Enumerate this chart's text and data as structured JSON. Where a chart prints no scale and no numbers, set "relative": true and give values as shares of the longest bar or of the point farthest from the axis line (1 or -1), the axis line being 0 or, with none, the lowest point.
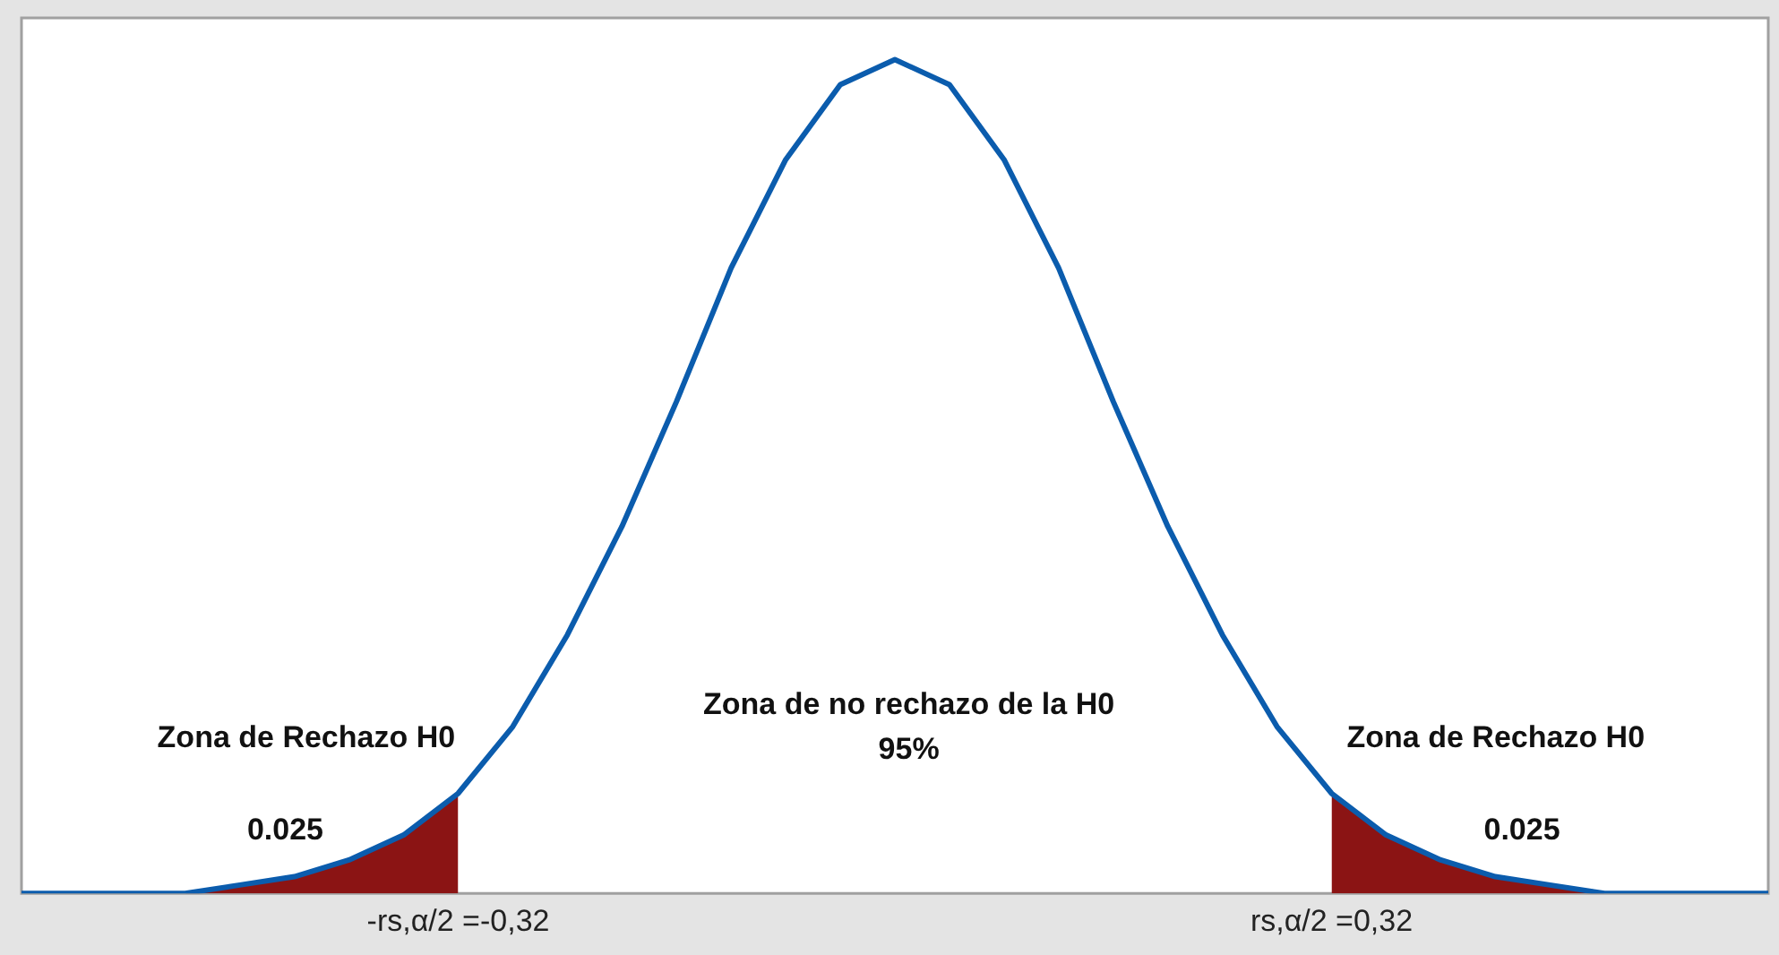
{
  "chart_data": {
    "type": "line",
    "relative": true,
    "marker": "none",
    "grid": false,
    "legend": false,
    "tick_labels": "x",
    "categories": [
      null,
      null,
      null,
      null,
      null,
      null,
      null,
      null,
      "-rs,α/2 =-0,32",
      null,
      null,
      null,
      null,
      null,
      null,
      null,
      null,
      null,
      null,
      null,
      null,
      null,
      null,
      null,
      "rs,α/2 =0,32",
      null,
      null,
      null,
      null,
      null,
      null,
      null,
      null
    ],
    "series": [
      {
        "color": "#0b5cad",
        "values": [
          0,
          0,
          0,
          0,
          0.01,
          0.02,
          0.04,
          0.07,
          0.12,
          0.2,
          0.31,
          0.44,
          0.59,
          0.75,
          0.88,
          0.97,
          1,
          0.97,
          0.88,
          0.75,
          0.59,
          0.44,
          0.31,
          0.2,
          0.12,
          0.07,
          0.04,
          0.02,
          0.01,
          0,
          0,
          0,
          0
        ]
      },
      {
        "type": "area",
        "color": "#8b1414",
        "values": [
          0,
          0,
          0,
          0,
          0.01,
          0.02,
          0.04,
          0.07,
          0.12,
          null,
          null,
          null,
          null,
          null,
          null,
          null,
          null,
          null,
          null,
          null,
          null,
          null,
          null,
          null,
          null,
          null,
          null,
          null,
          null,
          null,
          null,
          null,
          null
        ]
      },
      {
        "type": "area",
        "color": "#8b1414",
        "values": [
          null,
          null,
          null,
          null,
          null,
          null,
          null,
          null,
          null,
          null,
          null,
          null,
          null,
          null,
          null,
          null,
          null,
          null,
          null,
          null,
          null,
          null,
          null,
          null,
          0.12,
          0.07,
          0.04,
          0.02,
          0.01,
          0,
          0,
          0,
          0
        ]
      }
    ],
    "annotations": [
      "Zona de Rechazo H0",
      "0.025",
      "Zona de no rechazo de la H0",
      "95%",
      "Zona de Rechazo H0",
      "0.025"
    ]
  }
}
